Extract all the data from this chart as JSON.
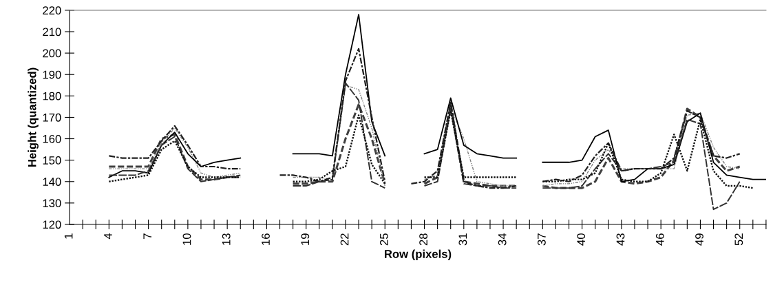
{
  "chart_data": {
    "type": "line",
    "xlabel": "Row (pixels)",
    "ylabel": "Height (quantized)",
    "categories": [
      "1",
      null,
      null,
      "4",
      null,
      null,
      "7",
      null,
      null,
      "10",
      null,
      null,
      "13",
      null,
      null,
      "16",
      null,
      null,
      "19",
      null,
      null,
      "22",
      null,
      null,
      "25",
      null,
      null,
      "28",
      null,
      null,
      "31",
      null,
      null,
      "34",
      null,
      null,
      "37",
      null,
      null,
      "40",
      null,
      null,
      "43",
      null,
      null,
      "46",
      null,
      null,
      "49",
      null,
      null,
      "52",
      null,
      null
    ],
    "ylim": [
      120,
      220
    ],
    "yticks": [
      120,
      130,
      140,
      150,
      160,
      170,
      180,
      190,
      200,
      210,
      220
    ],
    "grid": false,
    "marker": "none",
    "series": [
      {
        "color": "#000000",
        "line_style": "solid",
        "values": [
          null,
          null,
          null,
          142,
          145,
          145,
          144,
          157,
          163,
          153,
          147,
          149,
          150,
          151,
          null,
          null,
          null,
          153,
          153,
          153,
          152,
          190,
          218,
          168,
          152,
          null,
          null,
          153,
          155,
          179,
          157,
          153,
          152,
          151,
          151,
          null,
          149,
          149,
          149,
          150,
          161,
          164,
          140,
          141,
          146,
          146,
          148,
          168,
          172,
          149,
          143,
          142,
          141,
          141
        ]
      },
      {
        "color": "#404040",
        "line_style": "dashed",
        "values": [
          null,
          null,
          null,
          147,
          147,
          147,
          147,
          160,
          162,
          147,
          141,
          141,
          142,
          142,
          null,
          null,
          null,
          139,
          139,
          140,
          140,
          160,
          176,
          160,
          139,
          null,
          null,
          139,
          142,
          176,
          140,
          139,
          138,
          138,
          138,
          null,
          138,
          137,
          137,
          137,
          140,
          151,
          140,
          139,
          140,
          142,
          150,
          174,
          170,
          152,
          145,
          147,
          null,
          null
        ]
      },
      {
        "color": "#202020",
        "line_style": "dashdot",
        "values": [
          null,
          null,
          null,
          152,
          151,
          151,
          151,
          159,
          166,
          157,
          147,
          147,
          146,
          146,
          null,
          null,
          143,
          143,
          142,
          140,
          142,
          187,
          202,
          170,
          140,
          null,
          139,
          140,
          145,
          177,
          140,
          138,
          137,
          137,
          138,
          null,
          140,
          141,
          140,
          143,
          152,
          158,
          145,
          146,
          146,
          146,
          151,
          173,
          170,
          152,
          151,
          153,
          null,
          null
        ]
      },
      {
        "color": "#101010",
        "line_style": "dotted",
        "values": [
          null,
          null,
          null,
          140,
          141,
          142,
          143,
          155,
          159,
          147,
          142,
          142,
          142,
          142,
          null,
          null,
          null,
          140,
          140,
          141,
          145,
          147,
          171,
          148,
          139,
          null,
          null,
          142,
          142,
          173,
          142,
          142,
          142,
          142,
          142,
          null,
          140,
          140,
          141,
          141,
          144,
          158,
          141,
          140,
          140,
          144,
          162,
          145,
          169,
          145,
          138,
          138,
          137,
          null
        ]
      },
      {
        "color": "#303030",
        "line_style": "longdash",
        "values": [
          null,
          null,
          null,
          143,
          143,
          143,
          145,
          157,
          161,
          146,
          140,
          141,
          142,
          143,
          null,
          null,
          null,
          138,
          138,
          140,
          141,
          186,
          178,
          140,
          137,
          null,
          null,
          138,
          140,
          174,
          139,
          138,
          138,
          137,
          137,
          null,
          137,
          137,
          137,
          138,
          146,
          153,
          145,
          146,
          146,
          147,
          149,
          169,
          167,
          127,
          130,
          140,
          null,
          null
        ]
      },
      {
        "color": "#808080",
        "line_style": "dashdotdot",
        "values": [
          null,
          null,
          null,
          146,
          146,
          146,
          146,
          158,
          165,
          156,
          144,
          142,
          143,
          144,
          null,
          null,
          null,
          142,
          142,
          142,
          141,
          185,
          183,
          165,
          138,
          null,
          null,
          141,
          143,
          175,
          160,
          140,
          139,
          138,
          138,
          null,
          138,
          139,
          139,
          140,
          150,
          155,
          146,
          146,
          146,
          146,
          146,
          171,
          172,
          156,
          147,
          146,
          null,
          null
        ]
      }
    ]
  }
}
